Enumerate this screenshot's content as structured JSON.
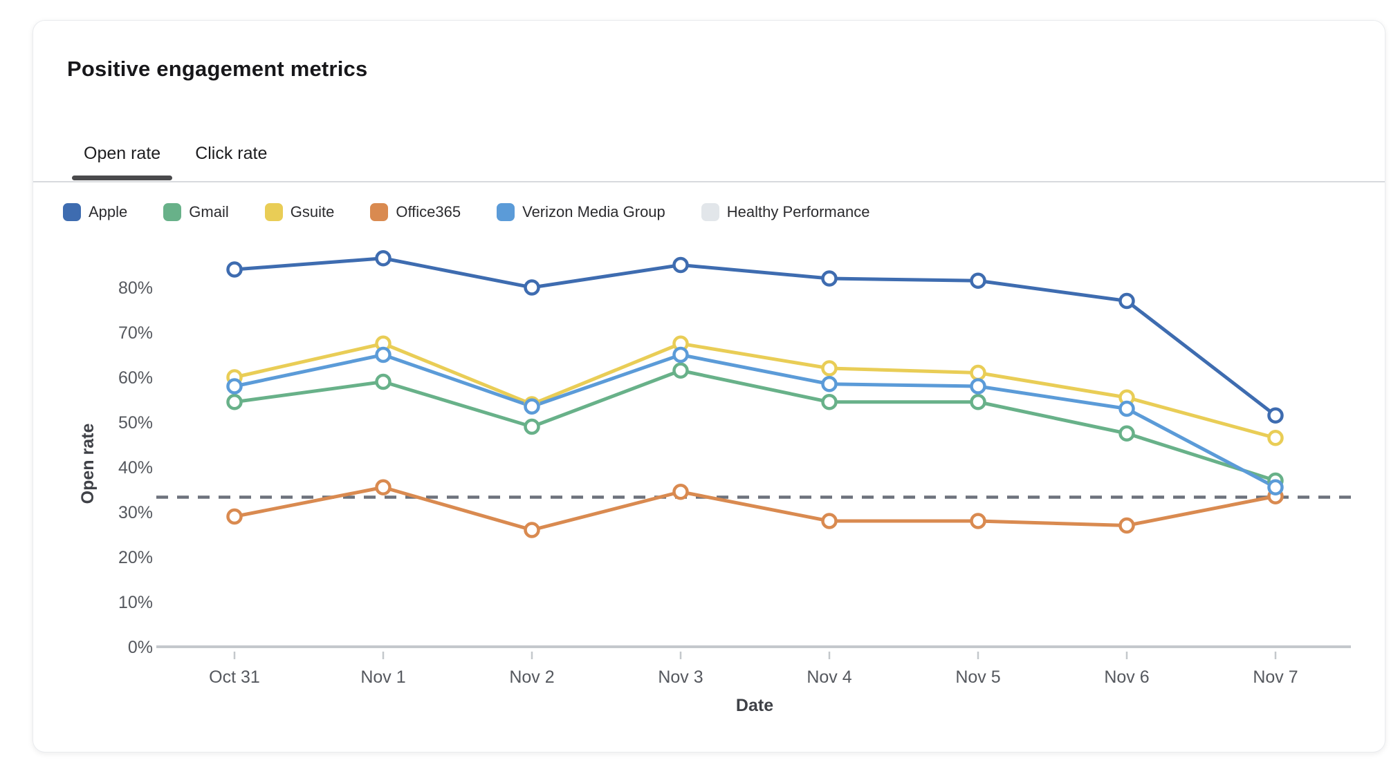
{
  "card": {
    "title": "Positive engagement metrics"
  },
  "tabs": [
    {
      "label": "Open rate",
      "active": true
    },
    {
      "label": "Click rate",
      "active": false
    }
  ],
  "legend": {
    "items": [
      {
        "label": "Apple",
        "color": "#3e6cb0"
      },
      {
        "label": "Gmail",
        "color": "#68b189"
      },
      {
        "label": "Gsuite",
        "color": "#e9cd56"
      },
      {
        "label": "Office365",
        "color": "#d98a50"
      },
      {
        "label": "Verizon Media Group",
        "color": "#5b9bd8"
      },
      {
        "label": "Healthy Performance",
        "color": "#e2e6ea"
      }
    ]
  },
  "chart_data": {
    "type": "line",
    "x": [
      "Oct 31",
      "Nov 1",
      "Nov 2",
      "Nov 3",
      "Nov 4",
      "Nov 5",
      "Nov 6",
      "Nov 7"
    ],
    "series": [
      {
        "name": "Apple",
        "color": "#3e6cb0",
        "values": [
          84,
          86.5,
          80,
          85,
          82,
          81.5,
          77,
          51.5
        ]
      },
      {
        "name": "Gmail",
        "color": "#68b189",
        "values": [
          54.5,
          59,
          49,
          61.5,
          54.5,
          54.5,
          47.5,
          37
        ]
      },
      {
        "name": "Gsuite",
        "color": "#e9cd56",
        "values": [
          60,
          67.5,
          54,
          67.5,
          62,
          61,
          55.5,
          46.5
        ]
      },
      {
        "name": "Office365",
        "color": "#d98a50",
        "values": [
          29,
          35.5,
          26,
          34.5,
          28,
          28,
          27,
          33.5
        ]
      },
      {
        "name": "Verizon Media Group",
        "color": "#5b9bd8",
        "values": [
          58,
          65,
          53.5,
          65,
          58.5,
          58,
          53,
          35.5
        ]
      },
      {
        "name": "Healthy Performance",
        "color": "#6d727c",
        "legend_color": "#e2e6ea",
        "dashed": true,
        "values": [
          33.3,
          33.3,
          33.3,
          33.3,
          33.3,
          33.3,
          33.3,
          33.3
        ]
      }
    ],
    "xlabel": "Date",
    "ylabel": "Open rate",
    "yticks": [
      "0%",
      "10%",
      "20%",
      "30%",
      "40%",
      "50%",
      "60%",
      "70%",
      "80%"
    ],
    "ylim": [
      0,
      90
    ],
    "grid": false,
    "legend_position": "top"
  }
}
